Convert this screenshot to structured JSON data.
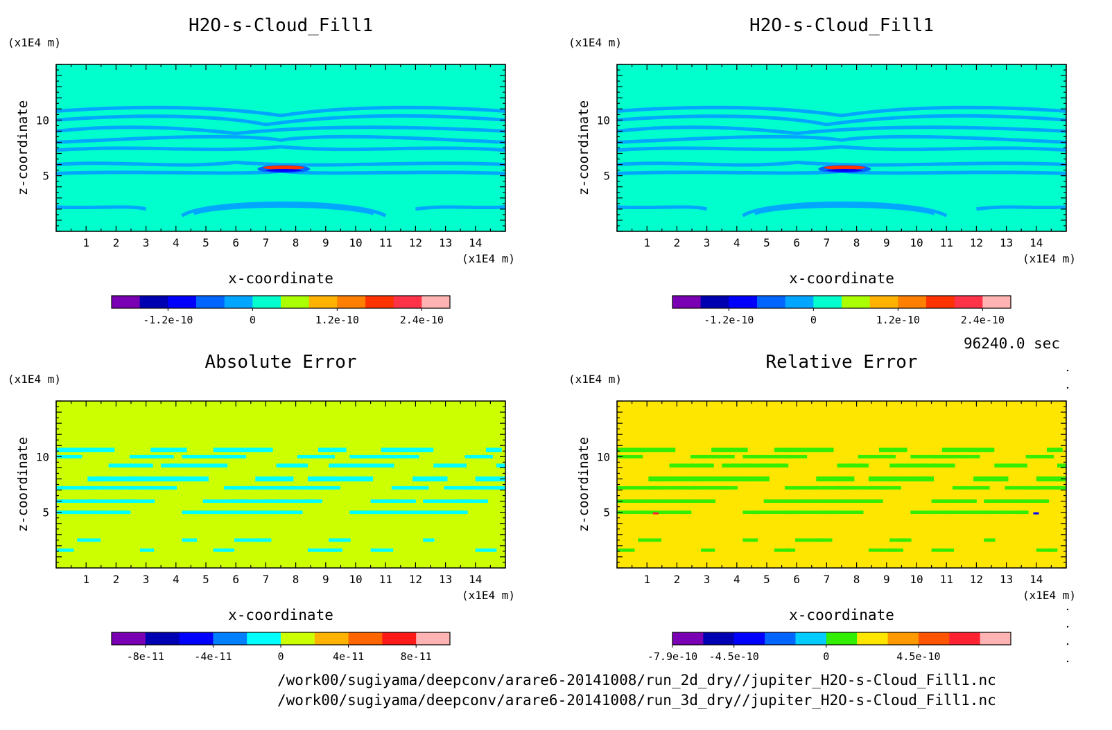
{
  "chart_data": [
    {
      "type": "heatmap",
      "title": "H2O-s-Cloud_Fill1",
      "xlabel": "x-coordinate",
      "ylabel": "z-coordinate",
      "xunit": "(x1E4 m)",
      "yunit": "(x1E4 m)",
      "xlim": [
        0,
        15
      ],
      "ylim": [
        0,
        15
      ],
      "xticks": [
        "1",
        "2",
        "3",
        "4",
        "5",
        "6",
        "7",
        "8",
        "9",
        "10",
        "11",
        "12",
        "13",
        "14"
      ],
      "yticks": [
        "5",
        "10"
      ],
      "background_level": "0",
      "colorbar": {
        "colors": [
          "#7a00b3",
          "#0000b3",
          "#0000ff",
          "#0066ff",
          "#00a6ff",
          "#00ffcc",
          "#aaff00",
          "#ffb300",
          "#ff7f00",
          "#ff3300",
          "#ff3347",
          "#ffb3b3"
        ],
        "tick_labels": [
          "-1.2e-10",
          "0",
          "1.2e-10",
          "2.4e-10"
        ]
      }
    },
    {
      "type": "heatmap",
      "title": "H2O-s-Cloud_Fill1",
      "xlabel": "x-coordinate",
      "ylabel": "z-coordinate",
      "xunit": "(x1E4 m)",
      "yunit": "(x1E4 m)",
      "xlim": [
        0,
        15
      ],
      "ylim": [
        0,
        15
      ],
      "xticks": [
        "1",
        "2",
        "3",
        "4",
        "5",
        "6",
        "7",
        "8",
        "9",
        "10",
        "11",
        "12",
        "13",
        "14"
      ],
      "yticks": [
        "5",
        "10"
      ],
      "background_level": "0",
      "colorbar": {
        "colors": [
          "#7a00b3",
          "#0000b3",
          "#0000ff",
          "#0066ff",
          "#00a6ff",
          "#00ffcc",
          "#aaff00",
          "#ffb300",
          "#ff7f00",
          "#ff3300",
          "#ff3347",
          "#ffb3b3"
        ],
        "tick_labels": [
          "-1.2e-10",
          "0",
          "1.2e-10",
          "2.4e-10"
        ]
      }
    },
    {
      "type": "heatmap",
      "title": "Absolute Error",
      "xlabel": "x-coordinate",
      "ylabel": "z-coordinate",
      "xunit": "(x1E4 m)",
      "yunit": "(x1E4 m)",
      "xlim": [
        0,
        15
      ],
      "ylim": [
        0,
        15
      ],
      "xticks": [
        "1",
        "2",
        "3",
        "4",
        "5",
        "6",
        "7",
        "8",
        "9",
        "10",
        "11",
        "12",
        "13",
        "14"
      ],
      "yticks": [
        "5",
        "10"
      ],
      "background_level": "0",
      "colorbar": {
        "colors": [
          "#7a00b3",
          "#0000b3",
          "#0000ff",
          "#0080ff",
          "#00ffff",
          "#ccff00",
          "#ffb300",
          "#ff6600",
          "#ff1a1a",
          "#ffb3b3"
        ],
        "tick_labels": [
          "-8e-11",
          "-4e-11",
          "0",
          "4e-11",
          "8e-11"
        ]
      }
    },
    {
      "type": "heatmap",
      "title": "Relative Error",
      "xlabel": "x-coordinate",
      "ylabel": "z-coordinate",
      "xunit": "(x1E4 m)",
      "yunit": "(x1E4 m)",
      "xlim": [
        0,
        15
      ],
      "ylim": [
        0,
        15
      ],
      "xticks": [
        "1",
        "2",
        "3",
        "4",
        "5",
        "6",
        "7",
        "8",
        "9",
        "10",
        "11",
        "12",
        "13",
        "14"
      ],
      "yticks": [
        "5",
        "10"
      ],
      "background_level": "0",
      "colorbar": {
        "colors": [
          "#7a00b3",
          "#0000b3",
          "#0000ff",
          "#0066ff",
          "#00ccff",
          "#33ee00",
          "#ffe600",
          "#ff9900",
          "#ff5500",
          "#ff2233",
          "#ffb3b3"
        ],
        "tick_labels": [
          "-7.9e-10",
          "-4.5e-10",
          "0",
          "4.5e-10"
        ]
      }
    }
  ],
  "footer": {
    "time": "96240.0 sec",
    "file1": "/work00/sugiyama/deepconv/arare6-20141008/run_2d_dry//jupiter_H2O-s-Cloud_Fill1.nc",
    "file2": "/work00/sugiyama/deepconv/arare6-20141008/run_3d_dry//jupiter_H2O-s-Cloud_Fill1.nc"
  }
}
